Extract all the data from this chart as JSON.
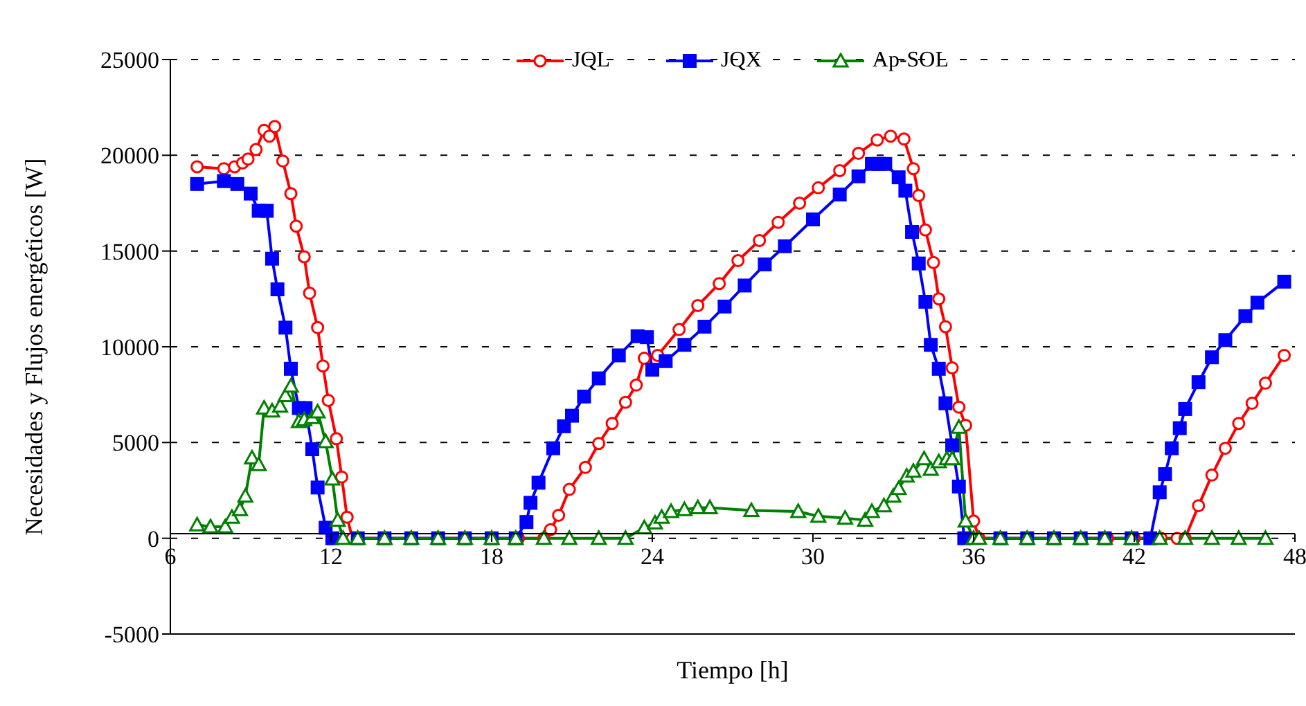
{
  "chart_data": {
    "type": "line",
    "xlabel": "Tiempo [h]",
    "ylabel": "Necesidades y Flujos energéticos [W]",
    "xlim": [
      6,
      48
    ],
    "xticks": [
      6,
      12,
      18,
      24,
      30,
      36,
      42,
      48
    ],
    "ylim": [
      -5000,
      25000
    ],
    "yticks": [
      -5000,
      0,
      5000,
      10000,
      15000,
      20000,
      25000
    ],
    "grid": "y",
    "legend": "top",
    "line_style": "solid",
    "series": [
      {
        "name": "JQL",
        "color": "#ff0000",
        "marker": "circle",
        "x": [
          7.0,
          8.0,
          8.4,
          8.7,
          8.9,
          9.2,
          9.5,
          9.7,
          9.9,
          10.2,
          10.5,
          10.7,
          11.0,
          11.2,
          11.5,
          11.7,
          11.9,
          12.2,
          12.4,
          12.6,
          12.8,
          14,
          15,
          16,
          17,
          18,
          19,
          19.95,
          20.2,
          20.5,
          20.9,
          21.5,
          22.0,
          22.5,
          23.0,
          23.4,
          23.7,
          24.2,
          25.0,
          25.7,
          26.5,
          27.2,
          28.0,
          28.7,
          29.5,
          30.2,
          31.0,
          31.7,
          32.4,
          32.9,
          33.4,
          33.75,
          33.95,
          34.2,
          34.5,
          34.7,
          34.95,
          35.2,
          35.45,
          35.7,
          36.0,
          36.2,
          37,
          38,
          39,
          40,
          41,
          42,
          43,
          43.6,
          43.9,
          44.4,
          44.9,
          45.4,
          45.9,
          46.4,
          46.9,
          47.6
        ],
        "values": [
          19400,
          19300,
          19400,
          19600,
          19800,
          20300,
          21300,
          21000,
          21500,
          19700,
          18000,
          16300,
          14700,
          12800,
          11000,
          9000,
          7200,
          5200,
          3200,
          1100,
          0,
          0,
          0,
          0,
          0,
          0,
          0,
          0,
          450,
          1200,
          2550,
          3700,
          4950,
          6000,
          7100,
          8000,
          9400,
          9550,
          10900,
          12150,
          13300,
          14500,
          15550,
          16500,
          17500,
          18300,
          19200,
          20100,
          20800,
          21000,
          20850,
          19300,
          17900,
          16100,
          14400,
          12500,
          11050,
          8900,
          6850,
          5900,
          900,
          0,
          0,
          0,
          0,
          0,
          0,
          0,
          0,
          0,
          0,
          1700,
          3300,
          4700,
          6000,
          7050,
          8100,
          9550
        ]
      },
      {
        "name": "JQX",
        "color": "#0000ff",
        "marker": "square",
        "x": [
          7.0,
          8.0,
          8.5,
          9.0,
          9.3,
          9.6,
          9.8,
          10.0,
          10.3,
          10.5,
          10.8,
          11.05,
          11.3,
          11.5,
          11.8,
          12.05,
          13,
          14,
          15,
          16,
          17,
          18,
          18.9,
          19.3,
          19.45,
          19.75,
          20.3,
          20.7,
          21.0,
          21.45,
          22.0,
          22.75,
          23.45,
          23.8,
          24.0,
          24.5,
          25.2,
          25.95,
          26.7,
          27.45,
          28.2,
          28.95,
          30.0,
          31.0,
          31.7,
          32.2,
          32.45,
          32.7,
          33.2,
          33.45,
          33.7,
          33.95,
          34.2,
          34.4,
          34.7,
          34.95,
          35.2,
          35.45,
          35.65,
          37,
          38,
          39,
          40,
          40.9,
          41.9,
          42.6,
          42.95,
          43.15,
          43.4,
          43.7,
          43.9,
          44.4,
          44.9,
          45.4,
          46.15,
          46.6,
          47.6
        ],
        "values": [
          18500,
          18650,
          18500,
          18000,
          17100,
          17100,
          14600,
          13000,
          11000,
          8850,
          6800,
          6800,
          4650,
          2650,
          550,
          0,
          0,
          0,
          0,
          0,
          0,
          0,
          0,
          850,
          1850,
          2900,
          4700,
          5850,
          6400,
          7400,
          8350,
          9550,
          10550,
          10500,
          8800,
          9250,
          10100,
          11050,
          12100,
          13200,
          14300,
          15250,
          16650,
          17950,
          18900,
          19550,
          19550,
          19550,
          18850,
          18150,
          16000,
          14350,
          12350,
          10100,
          8850,
          7050,
          4850,
          2700,
          0,
          0,
          0,
          0,
          0,
          0,
          0,
          0,
          2400,
          3350,
          4700,
          5750,
          6750,
          8150,
          9450,
          10350,
          11600,
          12300,
          13400
        ]
      },
      {
        "name": "Ap-SOL",
        "color": "#008000",
        "marker": "triangle",
        "x": [
          7.0,
          7.5,
          8.05,
          8.3,
          8.6,
          8.8,
          9.05,
          9.3,
          9.5,
          9.8,
          10.1,
          10.3,
          10.5,
          10.8,
          11.0,
          11.3,
          11.5,
          11.8,
          12.05,
          12.25,
          12.45,
          13,
          14,
          15,
          16,
          17,
          18,
          18.9,
          19.95,
          20.9,
          22.0,
          23.0,
          23.7,
          24.1,
          24.35,
          24.7,
          25.2,
          25.7,
          26.15,
          27.7,
          29.45,
          30.2,
          31.2,
          31.95,
          32.2,
          32.65,
          33.0,
          33.2,
          33.5,
          33.75,
          34.15,
          34.4,
          34.7,
          35.0,
          35.2,
          35.45,
          35.7,
          36.0,
          36.2,
          37,
          38,
          39,
          40,
          40.9,
          41.9,
          42.95,
          43.9,
          44.9,
          45.9,
          46.9
        ],
        "values": [
          700,
          600,
          600,
          1100,
          1500,
          2200,
          4200,
          3850,
          6800,
          6650,
          6900,
          7450,
          7950,
          6100,
          6200,
          6300,
          6600,
          5050,
          3100,
          950,
          0,
          0,
          0,
          0,
          0,
          0,
          0,
          0,
          0,
          0,
          0,
          0,
          550,
          800,
          1100,
          1400,
          1500,
          1600,
          1600,
          1450,
          1400,
          1150,
          1050,
          950,
          1400,
          1700,
          2200,
          2600,
          3250,
          3500,
          4150,
          3600,
          4000,
          4150,
          4150,
          5800,
          900,
          0,
          0,
          0,
          0,
          0,
          0,
          0,
          0,
          0,
          0,
          0,
          0,
          0
        ]
      }
    ]
  }
}
